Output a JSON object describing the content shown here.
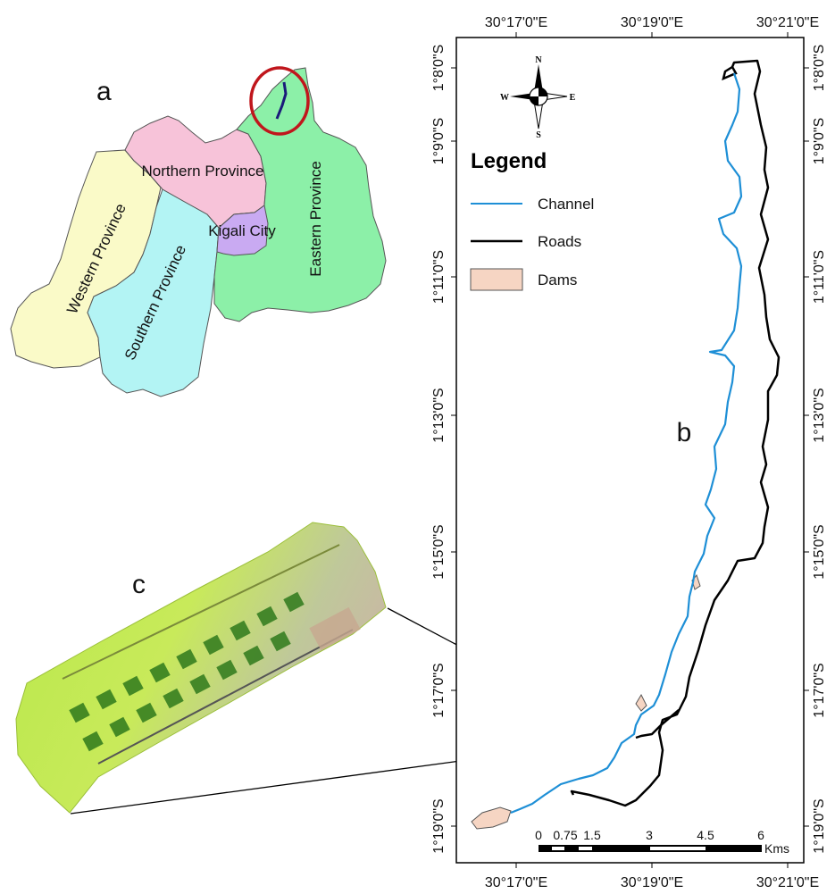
{
  "panel_labels": {
    "a": "a",
    "b": "b",
    "c": "c"
  },
  "provinces": {
    "northern": "Northern Province",
    "eastern": "Eastern Province",
    "western": "Western Province",
    "southern": "Southern Province",
    "kigali": "Kigali City"
  },
  "province_colors": {
    "northern": "#f7c3d9",
    "eastern": "#8cf0a8",
    "western": "#fafac8",
    "southern": "#b3f4f4",
    "kigali": "#c9aaf2"
  },
  "legend": {
    "title": "Legend",
    "items": [
      {
        "label": "Channel",
        "color": "#1e8fd6",
        "symbol": "line"
      },
      {
        "label": "Roads",
        "color": "#000000",
        "symbol": "line"
      },
      {
        "label": "Dams",
        "color": "#f6d5c3",
        "symbol": "polygon"
      }
    ]
  },
  "compass": {
    "n": "N",
    "s": "S",
    "e": "E",
    "w": "W"
  },
  "longitude_labels": [
    "30°17'0\"E",
    "30°19'0\"E",
    "30°21'0\"E"
  ],
  "latitude_labels": [
    "1°8'0\"S",
    "1°9'0\"S",
    "1°11'0\"S",
    "1°13'0\"S",
    "1°15'0\"S",
    "1°17'0\"S",
    "1°19'0\"S"
  ],
  "scale_bar": {
    "ticks": [
      "0",
      "0.75",
      "1.5",
      "3",
      "4.5",
      "6"
    ],
    "unit": "Kms"
  },
  "highlight_color": "#c0161c"
}
